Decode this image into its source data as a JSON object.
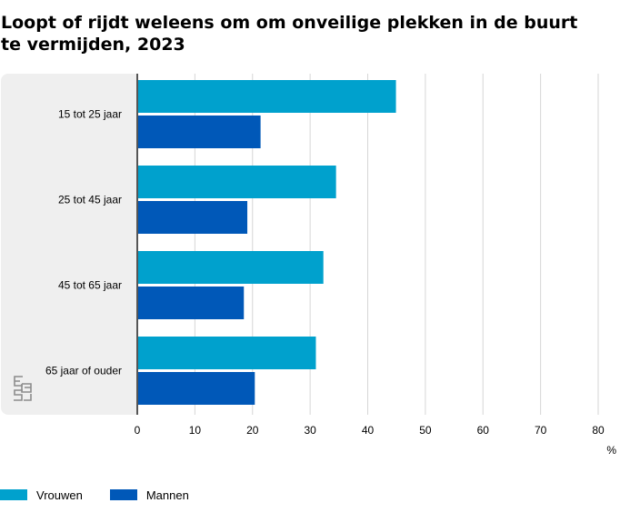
{
  "chart_data": {
    "type": "bar",
    "orientation": "horizontal",
    "title": "Loopt of rijdt weleens om om onveilige plekken in de buurt te vermijden, 2023",
    "xlabel": "",
    "unit_label": "%",
    "ylabel": "",
    "categories": [
      "15 tot 25 jaar",
      "25 tot 45 jaar",
      "45 tot 65 jaar",
      "65 jaar of ouder"
    ],
    "series": [
      {
        "name": "Vrouwen",
        "color": "#00a1cd",
        "values": [
          44.9,
          34.5,
          32.3,
          31.0
        ]
      },
      {
        "name": "Mannen",
        "color": "#0058b8",
        "values": [
          21.4,
          19.1,
          18.5,
          20.4
        ]
      }
    ],
    "xlim": [
      0,
      80
    ],
    "xticks": [
      0,
      10,
      20,
      30,
      40,
      50,
      60,
      70,
      80
    ],
    "grid": true,
    "legend_position": "bottom-left",
    "logo": "cbs-logo"
  }
}
